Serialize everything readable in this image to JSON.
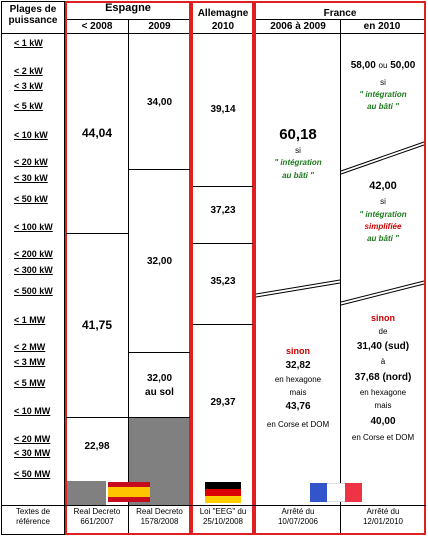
{
  "header": {
    "col0": "Plages de puissance",
    "espagne": "Espagne",
    "esp_2008": "< 2008",
    "esp_2009": "2009",
    "allemagne": "Allemagne",
    "all_2010": "2010",
    "france": "France",
    "fr_2006": "2006 à 2009",
    "fr_2010": "en 2010"
  },
  "ranges": [
    "< 1 kW",
    "< 2 kW",
    "< 3 kW",
    "< 5 kW",
    "< 10 kW",
    "< 20 kW",
    "< 30 kW",
    "< 50 kW",
    "< 100 kW",
    "< 200 kW",
    "< 300 kW",
    "< 500 kW",
    "< 1 MW",
    "< 2 MW",
    "< 3 MW",
    "< 5 MW",
    "< 10 MW",
    "< 20 MW",
    "< 30 MW",
    "< 50 MW"
  ],
  "espagne": {
    "pre2008_a": "44,04",
    "pre2008_b": "41,75",
    "pre2008_c": "22,98",
    "y2009_a": "34,00",
    "y2009_b": "32,00",
    "y2009_c1": "32,00",
    "y2009_c2": "au sol"
  },
  "allemagne": {
    "a": "39,14",
    "b": "37,23",
    "c": "35,23",
    "d": "29,37"
  },
  "france_2006": {
    "val": "60,18",
    "si": "si",
    "cond1": "\" intégration",
    "cond2": "au bâti \"",
    "sinon": "sinon",
    "v2": "32,82",
    "hex1": "en hexagone",
    "mais": "mais",
    "v3": "43,76",
    "corse": "en Corse et DOM"
  },
  "france_2010": {
    "v1a": "58,00",
    "ou": "ou",
    "v1b": "50,00",
    "si": "si",
    "cond1": "\" intégration",
    "cond2": "au bâti \"",
    "v2": "42,00",
    "si2": "si",
    "cond3": "\" intégration",
    "cond4": "simplifiée",
    "cond5": "au bâti \"",
    "sinon": "sinon",
    "de": "de",
    "v3": "31,40 (sud)",
    "a": "à",
    "v4": "37,68 (nord)",
    "hex": "en hexagone",
    "mais": "mais",
    "v5": "40,00",
    "corse": "en Corse et DOM"
  },
  "footer": {
    "label1": "Textes de",
    "label2": "référence",
    "esp1_a": "Real Decreto",
    "esp1_b": "661/2007",
    "esp2_a": "Real Decreto",
    "esp2_b": "1578/2008",
    "all_a": "Loi \"EEG\" du",
    "all_b": "25/10/2008",
    "fr1_a": "Arrêté du",
    "fr1_b": "10/07/2006",
    "fr2_a": "Arrêté du",
    "fr2_b": "12/01/2010"
  },
  "colors": {
    "border_red": "#e02020",
    "green": "#1e7a1e",
    "red": "#cc0000",
    "gray": "#808080"
  }
}
